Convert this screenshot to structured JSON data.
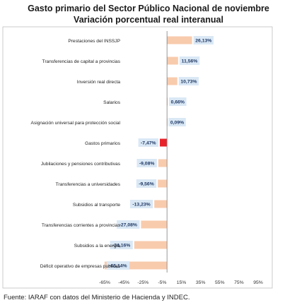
{
  "title": "Gasto primario  del Sector Público Nacional de noviembre",
  "subtitle": "Variación porcentual real interanual",
  "source": "Fuente: IARAF con datos del Ministerio de Hacienda y INDEC.",
  "colors": {
    "positive_bar": "#f8cbad",
    "negative_bar": "#f8cbad",
    "highlight_bar": "#e8222a",
    "label_box": "#dae8f5",
    "axis_line": "#7f7f7f",
    "frame": "#bfbfbf"
  },
  "chart_data": {
    "type": "bar",
    "orientation": "horizontal",
    "categories": [
      "Prestaciones del INSSJP",
      "Transferencias de capital a provincias",
      "Inversión real directa",
      "Salarios",
      "Asignación universal para protección social",
      "Gastos primarios",
      "Jubilaciones y pensiones contributivas",
      "Transferencias a universidades",
      "Subsidios al transporte",
      "Transferencias corrientes a provincias",
      "Subsidios a la energía",
      "Déficit operativo de empresas publicas"
    ],
    "values": [
      26.13,
      11.56,
      10.73,
      0.66,
      0.09,
      -7.47,
      -9.08,
      -9.56,
      -13.23,
      -27.08,
      -34.16,
      -65.14
    ],
    "data_labels": [
      "26,13%",
      "11,56%",
      "10,73%",
      "0,66%",
      "0,09%",
      "-7,47%",
      "-9,08%",
      "-9,56%",
      "-13,23%",
      "-27,08%",
      "-34,16%",
      "-65,14%"
    ],
    "highlight_category": "Gastos primarios",
    "xlim": [
      -65,
      95
    ],
    "x_ticks": [
      -65,
      -45,
      -25,
      -5,
      15,
      35,
      55,
      75,
      95
    ],
    "x_tick_labels": [
      "-65%",
      "-45%",
      "-25%",
      "-5%",
      "15%",
      "35%",
      "55%",
      "75%",
      "95%"
    ],
    "grid": false,
    "legend": "none"
  }
}
